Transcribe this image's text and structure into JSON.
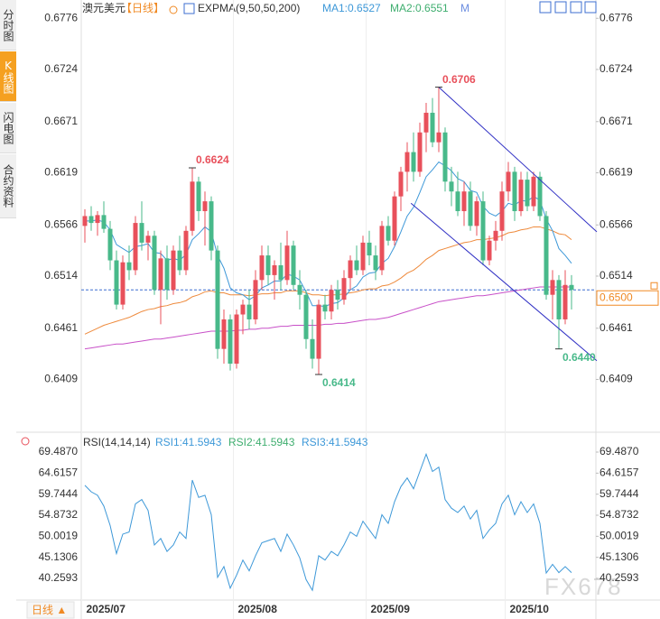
{
  "header": {
    "symbol": "澳元美元",
    "period": "【日线】",
    "indicator": "EXPMA(9,50,50,200)"
  },
  "sidebar": {
    "tabs": [
      "分时图",
      "K线图",
      "闪电图",
      "合约资料"
    ],
    "active": 1
  },
  "footer": {
    "period_button": "日线 ▲",
    "watermark": "FX678"
  },
  "chart_data": [
    {
      "type": "candlestick",
      "up_color": "#e8505b",
      "down_color": "#48b98a",
      "open": [
        0.6565,
        0.6575,
        0.6568,
        0.6576,
        0.6562,
        0.653,
        0.6485,
        0.6528,
        0.652,
        0.6568,
        0.6548,
        0.6555,
        0.65,
        0.6532,
        0.65,
        0.654,
        0.652,
        0.656,
        0.661,
        0.658,
        0.659,
        0.654,
        0.644,
        0.647,
        0.6425,
        0.6475,
        0.6485,
        0.647,
        0.651,
        0.6535,
        0.6515,
        0.6525,
        0.651,
        0.6545,
        0.6505,
        0.6495,
        0.645,
        0.643,
        0.6485,
        0.6478,
        0.65,
        0.649,
        0.6512,
        0.653,
        0.652,
        0.6548,
        0.6535,
        0.652,
        0.6565,
        0.655,
        0.6595,
        0.662,
        0.664,
        0.662,
        0.666,
        0.668,
        0.665,
        0.666,
        0.661,
        0.66,
        0.658,
        0.66,
        0.6565,
        0.659,
        0.653,
        0.655,
        0.656,
        0.66,
        0.662,
        0.658,
        0.6612,
        0.6585,
        0.6615,
        0.6575,
        0.6495,
        0.651,
        0.647,
        0.6505
      ],
      "high": [
        0.6582,
        0.6585,
        0.658,
        0.659,
        0.657,
        0.654,
        0.6535,
        0.6545,
        0.6575,
        0.659,
        0.656,
        0.656,
        0.654,
        0.6545,
        0.6545,
        0.6555,
        0.6565,
        0.6624,
        0.6615,
        0.66,
        0.6595,
        0.6545,
        0.648,
        0.6475,
        0.648,
        0.649,
        0.65,
        0.652,
        0.6545,
        0.6545,
        0.653,
        0.6548,
        0.656,
        0.655,
        0.652,
        0.65,
        0.647,
        0.649,
        0.6495,
        0.6505,
        0.651,
        0.652,
        0.6535,
        0.6545,
        0.6555,
        0.656,
        0.6545,
        0.657,
        0.6575,
        0.66,
        0.6625,
        0.665,
        0.666,
        0.667,
        0.669,
        0.6695,
        0.6706,
        0.6665,
        0.6625,
        0.662,
        0.661,
        0.661,
        0.6595,
        0.66,
        0.6555,
        0.657,
        0.661,
        0.663,
        0.6625,
        0.662,
        0.662,
        0.662,
        0.662,
        0.658,
        0.652,
        0.6515,
        0.652,
        0.6515
      ],
      "low": [
        0.6548,
        0.656,
        0.6555,
        0.6558,
        0.652,
        0.648,
        0.648,
        0.651,
        0.6515,
        0.654,
        0.653,
        0.6495,
        0.6465,
        0.649,
        0.6495,
        0.6515,
        0.6515,
        0.6555,
        0.657,
        0.6545,
        0.653,
        0.643,
        0.6425,
        0.6418,
        0.642,
        0.6455,
        0.646,
        0.6465,
        0.65,
        0.6505,
        0.649,
        0.65,
        0.6505,
        0.65,
        0.648,
        0.644,
        0.642,
        0.6414,
        0.647,
        0.647,
        0.648,
        0.6485,
        0.65,
        0.6515,
        0.6515,
        0.6525,
        0.651,
        0.6515,
        0.6545,
        0.6545,
        0.658,
        0.66,
        0.661,
        0.6615,
        0.664,
        0.6645,
        0.664,
        0.66,
        0.6585,
        0.6575,
        0.6565,
        0.656,
        0.6555,
        0.6525,
        0.6525,
        0.654,
        0.655,
        0.659,
        0.657,
        0.6575,
        0.658,
        0.658,
        0.657,
        0.649,
        0.647,
        0.644,
        0.6465,
        0.648
      ],
      "close": [
        0.6575,
        0.6568,
        0.6576,
        0.6562,
        0.653,
        0.6485,
        0.6528,
        0.652,
        0.6568,
        0.6548,
        0.6555,
        0.65,
        0.6532,
        0.65,
        0.654,
        0.652,
        0.656,
        0.661,
        0.658,
        0.659,
        0.654,
        0.644,
        0.647,
        0.6425,
        0.6475,
        0.6485,
        0.647,
        0.651,
        0.6535,
        0.6515,
        0.6525,
        0.651,
        0.6545,
        0.6505,
        0.6495,
        0.645,
        0.643,
        0.6485,
        0.6478,
        0.65,
        0.649,
        0.6512,
        0.653,
        0.652,
        0.6548,
        0.6535,
        0.652,
        0.6565,
        0.655,
        0.6595,
        0.662,
        0.664,
        0.662,
        0.666,
        0.668,
        0.665,
        0.666,
        0.661,
        0.66,
        0.658,
        0.66,
        0.6565,
        0.659,
        0.653,
        0.655,
        0.656,
        0.66,
        0.662,
        0.658,
        0.6612,
        0.6585,
        0.6615,
        0.6575,
        0.6495,
        0.651,
        0.647,
        0.6505,
        0.65
      ],
      "series": [
        {
          "name": "MA1:0.6527",
          "color": "#3d98d8",
          "values": [
            0.657,
            0.657,
            0.6571,
            0.6569,
            0.6561,
            0.6546,
            0.6542,
            0.6538,
            0.6544,
            0.6545,
            0.6547,
            0.6538,
            0.6537,
            0.653,
            0.6532,
            0.653,
            0.6536,
            0.6551,
            0.6557,
            0.6564,
            0.6559,
            0.6535,
            0.6522,
            0.6502,
            0.6497,
            0.6495,
            0.649,
            0.6494,
            0.6502,
            0.6505,
            0.6509,
            0.6509,
            0.6516,
            0.6514,
            0.651,
            0.6498,
            0.6484,
            0.6484,
            0.6483,
            0.6486,
            0.6487,
            0.6492,
            0.65,
            0.6504,
            0.6513,
            0.6517,
            0.6518,
            0.6527,
            0.6532,
            0.6544,
            0.6559,
            0.6575,
            0.6584,
            0.6599,
            0.6615,
            0.6622,
            0.663,
            0.6626,
            0.6621,
            0.6613,
            0.661,
            0.6601,
            0.6599,
            0.6585,
            0.6578,
            0.6575,
            0.658,
            0.6588,
            0.6586,
            0.6591,
            0.659,
            0.6595,
            0.6591,
            0.6572,
            0.656,
            0.6542,
            0.6535,
            0.6527
          ]
        },
        {
          "name": "MA2:0.6551",
          "color": "#ee8a3c",
          "label_color": "#3fae6f",
          "values": [
            0.6455,
            0.6458,
            0.6461,
            0.6464,
            0.6466,
            0.6468,
            0.647,
            0.6472,
            0.6475,
            0.6478,
            0.648,
            0.6481,
            0.6483,
            0.6484,
            0.6486,
            0.6487,
            0.6489,
            0.6493,
            0.6495,
            0.6498,
            0.6499,
            0.6497,
            0.6497,
            0.6495,
            0.6495,
            0.6495,
            0.6494,
            0.6495,
            0.6496,
            0.6496,
            0.6497,
            0.6497,
            0.6499,
            0.6499,
            0.6499,
            0.6497,
            0.6495,
            0.6495,
            0.6494,
            0.6495,
            0.6495,
            0.6496,
            0.6497,
            0.6498,
            0.65,
            0.6501,
            0.6501,
            0.6504,
            0.6505,
            0.6508,
            0.6512,
            0.6517,
            0.652,
            0.6525,
            0.6531,
            0.6535,
            0.654,
            0.6542,
            0.6544,
            0.6546,
            0.6548,
            0.6549,
            0.6551,
            0.6551,
            0.6552,
            0.6553,
            0.6555,
            0.6558,
            0.6559,
            0.6561,
            0.6562,
            0.6564,
            0.6564,
            0.6562,
            0.656,
            0.6557,
            0.6556,
            0.6551
          ]
        },
        {
          "name": "M",
          "color": "#c850c8",
          "label_color": "#6b8de0",
          "values": [
            0.644,
            0.6441,
            0.6442,
            0.6443,
            0.6444,
            0.6445,
            0.6445,
            0.6446,
            0.6447,
            0.6448,
            0.6449,
            0.645,
            0.645,
            0.6451,
            0.6452,
            0.6453,
            0.6454,
            0.6455,
            0.6456,
            0.6457,
            0.6458,
            0.6458,
            0.6458,
            0.6458,
            0.6459,
            0.6459,
            0.646,
            0.646,
            0.6461,
            0.6461,
            0.6462,
            0.6463,
            0.6463,
            0.6464,
            0.6464,
            0.6464,
            0.6464,
            0.6464,
            0.6465,
            0.6465,
            0.6466,
            0.6466,
            0.6467,
            0.6468,
            0.6469,
            0.647,
            0.647,
            0.6471,
            0.6472,
            0.6474,
            0.6476,
            0.6478,
            0.648,
            0.6482,
            0.6484,
            0.6486,
            0.6488,
            0.6489,
            0.649,
            0.6491,
            0.6492,
            0.6493,
            0.6494,
            0.6494,
            0.6495,
            0.6496,
            0.6497,
            0.6498,
            0.6499,
            0.65,
            0.6501,
            0.6502,
            0.6503,
            0.6503,
            0.6503,
            0.6503,
            0.6503,
            0.6503
          ]
        }
      ],
      "last_price": {
        "value": 0.65,
        "label": "0.6500",
        "color": "#f08a24"
      },
      "annotations": [
        {
          "x": 56,
          "value": 0.6706
        },
        {
          "x": 17,
          "value": 0.6624
        },
        {
          "x": 37,
          "value": 0.6414
        },
        {
          "x": 75,
          "value": 0.644,
          "label": "0.6440"
        }
      ],
      "trendlines": [
        {
          "color": "#2f2fc4",
          "points": [
            [
              56,
              0.6706
            ],
            [
              81,
              0.6559
            ]
          ]
        },
        {
          "color": "#2f2fc4",
          "points": [
            [
              51.6,
              0.6588
            ],
            [
              81,
              0.6428
            ]
          ]
        }
      ],
      "ylim": [
        0.6359,
        0.679
      ],
      "yticks": [
        0.6776,
        0.6724,
        0.6671,
        0.6619,
        0.6566,
        0.6514,
        0.6461,
        0.6409
      ],
      "xticks": [
        {
          "value": 0,
          "label": "2025/07"
        },
        {
          "value": 24,
          "label": "2025/08"
        },
        {
          "value": 45,
          "label": "2025/09"
        },
        {
          "value": 67,
          "label": "2025/10"
        }
      ]
    },
    {
      "type": "line",
      "title": "RSI(14,14,14)",
      "series": [
        {
          "name": "RSI1:41.5943",
          "color": "#3d98d8",
          "values": [
            61.8,
            60.3,
            59.5,
            57,
            52.5,
            46,
            50.5,
            51,
            57.5,
            58.5,
            56,
            48,
            49.5,
            46.5,
            48,
            51,
            49.5,
            63,
            59,
            59.5,
            55,
            40.5,
            43,
            38,
            41,
            44.5,
            42,
            45.5,
            48.5,
            49,
            49.5,
            46.5,
            50.5,
            48,
            45,
            40,
            37.5,
            45.5,
            44.5,
            46.5,
            45.5,
            48,
            51,
            50,
            53.5,
            51.5,
            49.5,
            55,
            53,
            58,
            61.5,
            63.5,
            61,
            65,
            69,
            65,
            66,
            58.5,
            56.5,
            55.5,
            57,
            54,
            56,
            49.5,
            51.5,
            53,
            57.5,
            59.5,
            55,
            58,
            55.5,
            57.5,
            53,
            41.5,
            43.5,
            41.6,
            43,
            41.5943
          ]
        }
      ],
      "extra_labels": [
        {
          "text": "RSI2:41.5943",
          "color": "#3fae6f"
        },
        {
          "text": "RSI3:41.5943",
          "color": "#3d98d8"
        }
      ],
      "ylim": [
        35.25,
        73.25
      ],
      "yticks": [
        {
          "value": 69.487,
          "label": "69.4870"
        },
        64.6157,
        59.7444,
        54.8732,
        50.0019,
        45.1306,
        40.2593
      ]
    }
  ]
}
